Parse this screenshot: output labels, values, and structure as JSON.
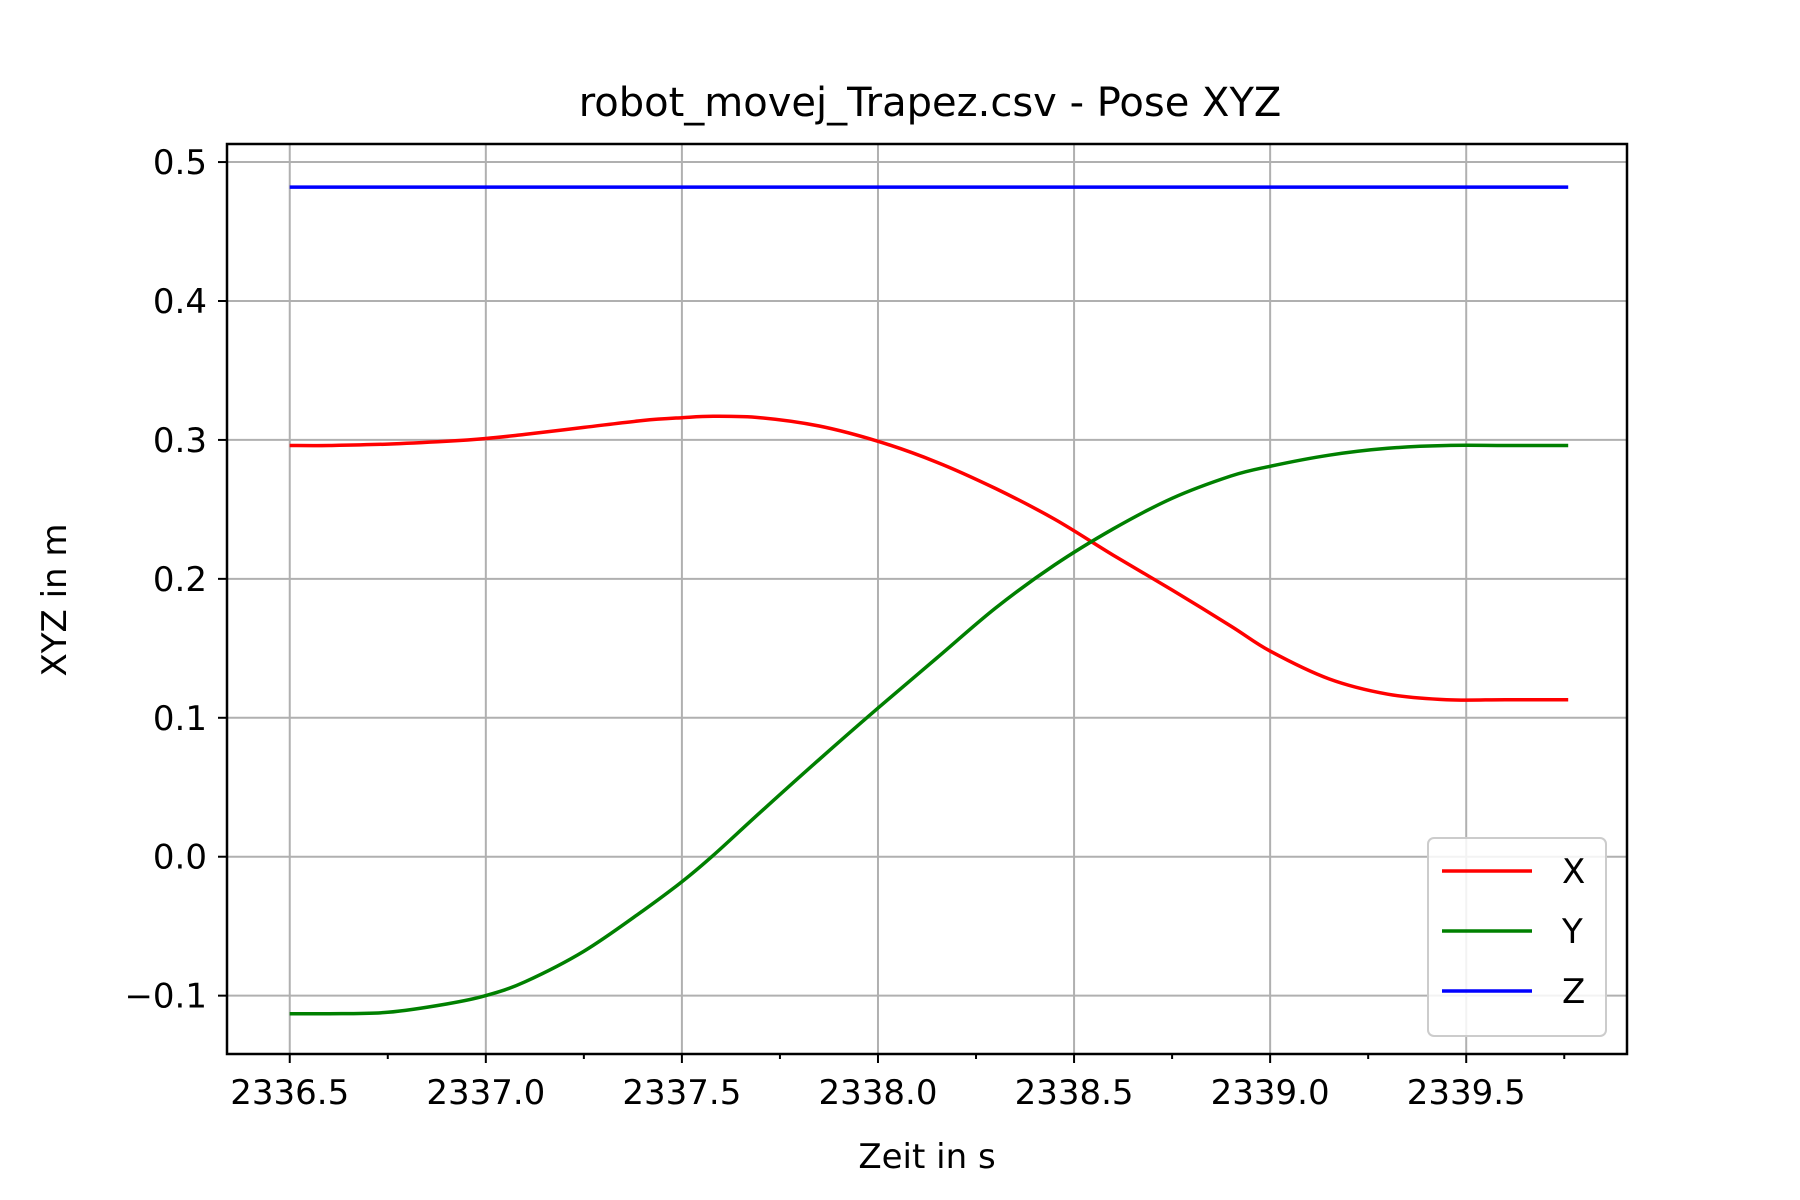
{
  "chart_data": {
    "type": "line",
    "title": "robot_movej_Trapez.csv - Pose XYZ",
    "xlabel": "Zeit in s",
    "ylabel": "XYZ in m",
    "xlim": [
      2336.34,
      2339.91
    ],
    "ylim": [
      -0.142,
      0.513
    ],
    "xticks": [
      2336.5,
      2337.0,
      2337.5,
      2338.0,
      2338.5,
      2339.0,
      2339.5
    ],
    "xtick_labels": [
      "2336.5",
      "2337.0",
      "2337.5",
      "2338.0",
      "2338.5",
      "2339.0",
      "2339.5"
    ],
    "xminor_ticks": [
      2336.75,
      2337.25,
      2337.75,
      2338.25,
      2338.75,
      2339.25,
      2339.75
    ],
    "yticks": [
      -0.1,
      0.0,
      0.1,
      0.2,
      0.3,
      0.4,
      0.5
    ],
    "ytick_labels": [
      "−0.1",
      "0.0",
      "0.1",
      "0.2",
      "0.3",
      "0.4",
      "0.5"
    ],
    "grid": true,
    "legend_position": "lower-right",
    "x": [
      2336.5,
      2336.6,
      2336.75,
      2336.9,
      2337.0,
      2337.1,
      2337.25,
      2337.4,
      2337.5,
      2337.58,
      2337.7,
      2337.85,
      2338.0,
      2338.15,
      2338.3,
      2338.45,
      2338.6,
      2338.75,
      2338.9,
      2339.0,
      2339.15,
      2339.3,
      2339.45,
      2339.6,
      2339.76
    ],
    "series": [
      {
        "name": "X",
        "color": "#ff0000",
        "values": [
          0.296,
          0.296,
          0.297,
          0.299,
          0.301,
          0.304,
          0.309,
          0.314,
          0.316,
          0.317,
          0.316,
          0.31,
          0.299,
          0.284,
          0.265,
          0.243,
          0.217,
          0.192,
          0.166,
          0.148,
          0.128,
          0.117,
          0.113,
          0.113,
          0.113
        ]
      },
      {
        "name": "Y",
        "color": "#008000",
        "values": [
          -0.113,
          -0.113,
          -0.112,
          -0.106,
          -0.1,
          -0.09,
          -0.068,
          -0.039,
          -0.018,
          0.001,
          0.032,
          0.07,
          0.107,
          0.143,
          0.179,
          0.21,
          0.236,
          0.258,
          0.274,
          0.281,
          0.289,
          0.294,
          0.296,
          0.296,
          0.296
        ]
      },
      {
        "name": "Z",
        "color": "#0000ff",
        "values": [
          0.482,
          0.482,
          0.482,
          0.482,
          0.482,
          0.482,
          0.482,
          0.482,
          0.482,
          0.482,
          0.482,
          0.482,
          0.482,
          0.482,
          0.482,
          0.482,
          0.482,
          0.482,
          0.482,
          0.482,
          0.482,
          0.482,
          0.482,
          0.482,
          0.482
        ]
      }
    ]
  }
}
